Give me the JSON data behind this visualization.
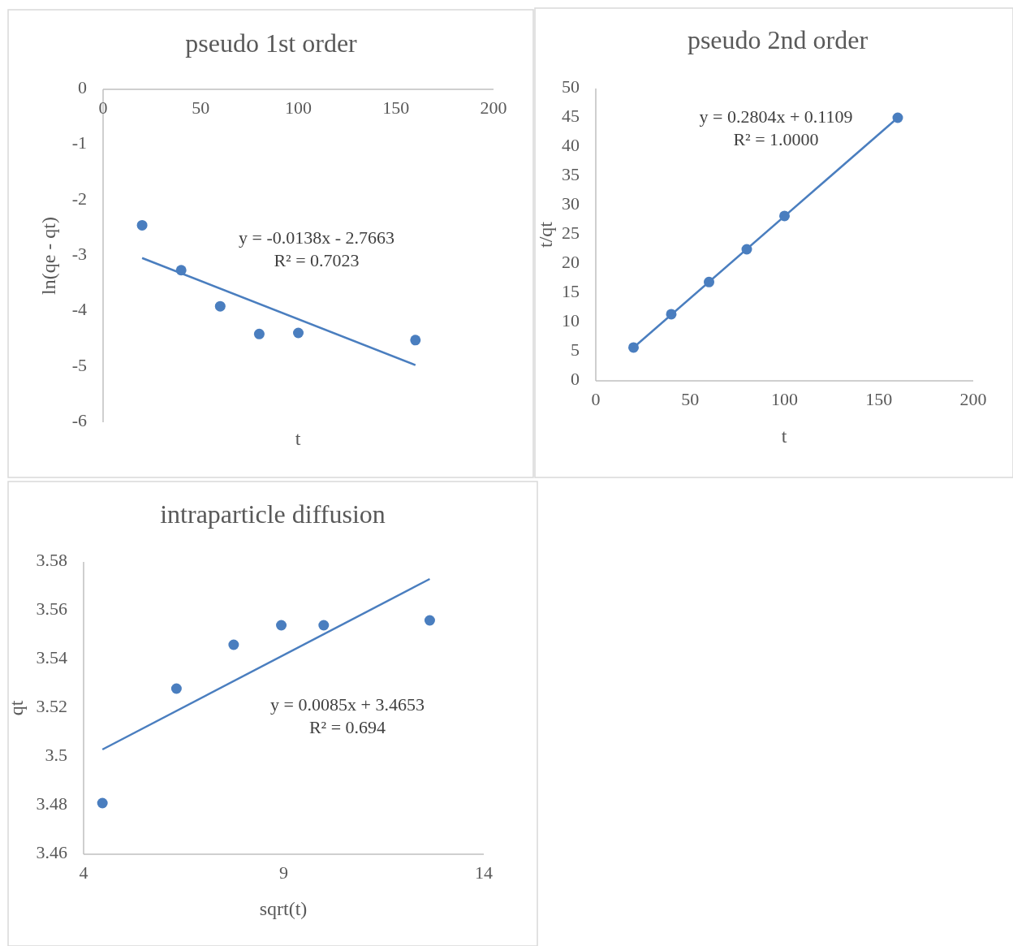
{
  "chart_data": [
    {
      "type": "scatter",
      "title": "pseudo 1st order",
      "xlabel": "t",
      "ylabel": "ln(qe - qt)",
      "xlim": [
        0,
        200
      ],
      "xticks": [
        0,
        50,
        100,
        150,
        200
      ],
      "ylim": [
        -6,
        0
      ],
      "yticks": [
        0,
        -1,
        -2,
        -3,
        -4,
        -5,
        -6
      ],
      "grid": false,
      "annotations": [
        "y = -0.0138x - 2.7663",
        "R² = 0.7023"
      ],
      "series": [
        {
          "color": "#4a7ebf",
          "marker": "circle",
          "x": [
            20,
            40,
            60,
            80,
            100,
            160
          ],
          "values": [
            -2.45,
            -3.26,
            -3.91,
            -4.41,
            -4.39,
            -4.52
          ]
        },
        {
          "type": "line",
          "marker": "none",
          "color": "#4a7ebf",
          "x": [
            20,
            160
          ],
          "values": [
            -3.04,
            -4.97
          ]
        }
      ]
    },
    {
      "type": "scatter",
      "title": "pseudo 2nd order",
      "xlabel": "t",
      "ylabel": "t/qt",
      "xlim": [
        0,
        200
      ],
      "xticks": [
        0,
        50,
        100,
        150,
        200
      ],
      "ylim": [
        0,
        50
      ],
      "yticks": [
        0,
        5,
        10,
        15,
        20,
        25,
        30,
        35,
        40,
        45,
        50
      ],
      "grid": false,
      "annotations": [
        "y = 0.2804x + 0.1109",
        "R² = 1.0000"
      ],
      "series": [
        {
          "color": "#4a7ebf",
          "marker": "circle",
          "x": [
            20,
            40,
            60,
            80,
            100,
            160
          ],
          "values": [
            5.7,
            11.4,
            16.9,
            22.5,
            28.2,
            45.0
          ]
        },
        {
          "type": "line",
          "marker": "none",
          "color": "#4a7ebf",
          "x": [
            20,
            160
          ],
          "values": [
            5.7,
            45.0
          ]
        }
      ]
    },
    {
      "type": "scatter",
      "title": "intraparticle diffusion",
      "xlabel": "sqrt(t)",
      "ylabel": "qt",
      "xlim": [
        4,
        14
      ],
      "xticks": [
        4,
        9,
        14
      ],
      "ylim": [
        3.46,
        3.58
      ],
      "yticks": [
        3.46,
        3.48,
        3.5,
        3.52,
        3.54,
        3.56,
        3.58
      ],
      "grid": false,
      "annotations": [
        "y = 0.0085x + 3.4653",
        "R² = 0.694"
      ],
      "series": [
        {
          "color": "#4a7ebf",
          "marker": "circle",
          "x": [
            4.47,
            6.32,
            7.75,
            8.94,
            10,
            12.65
          ],
          "values": [
            3.481,
            3.528,
            3.546,
            3.554,
            3.554,
            3.556
          ]
        },
        {
          "type": "line",
          "marker": "none",
          "color": "#4a7ebf",
          "x": [
            4.47,
            12.65
          ],
          "values": [
            3.503,
            3.573
          ]
        }
      ]
    }
  ]
}
